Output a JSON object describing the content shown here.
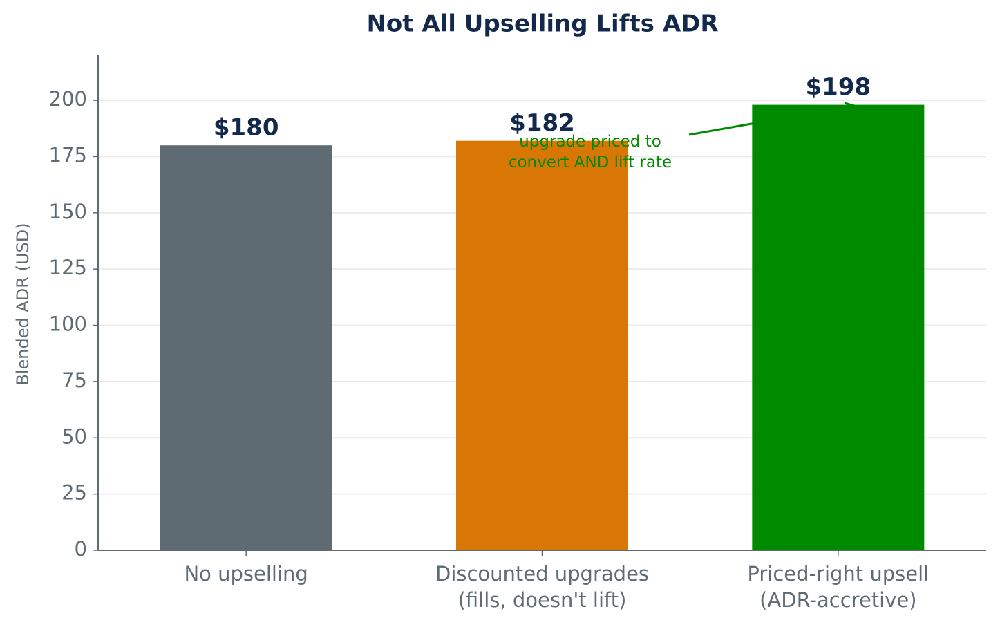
{
  "chart_data": {
    "type": "bar",
    "title": "Not All Upselling Lifts ADR",
    "y_label": "Blended ADR (USD)",
    "categories": [
      "No upselling",
      "Discounted upgrades\n(fills, doesn't lift)",
      "Priced-right upsell\n(ADR-accretive)"
    ],
    "values": [
      180,
      182,
      198
    ],
    "value_labels": [
      "$180",
      "$182",
      "$198"
    ],
    "colors": [
      "#5f6b73",
      "#d97706",
      "#008a00"
    ],
    "ylim": [
      0,
      220
    ],
    "yticks": [
      0,
      25,
      50,
      75,
      100,
      125,
      150,
      175,
      200
    ],
    "grid": true,
    "annotation": {
      "text": "upgrade priced to\nconvert AND lift rate",
      "color": "#008a00"
    }
  }
}
